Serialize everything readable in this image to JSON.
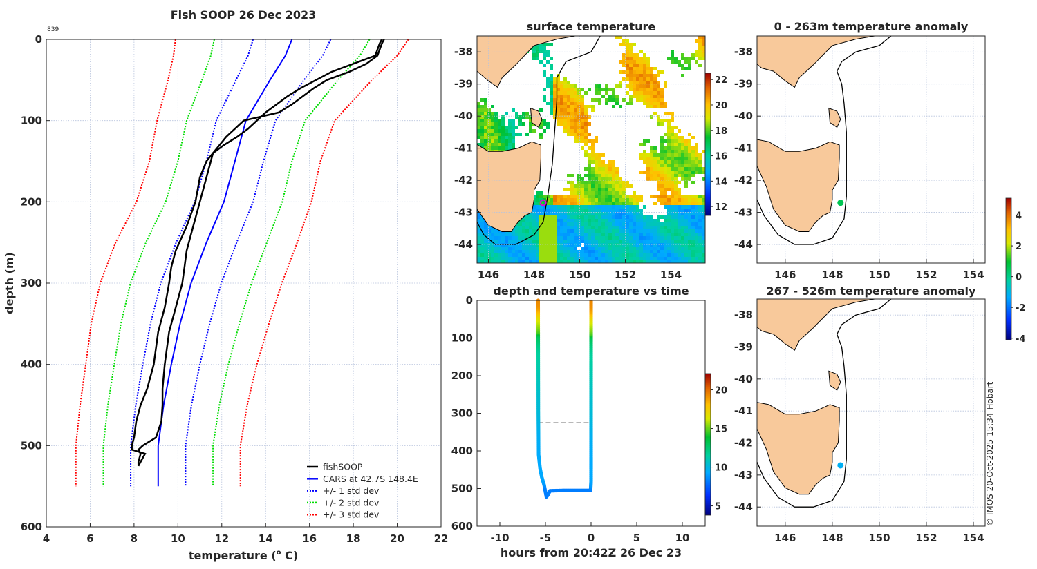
{
  "main": {
    "title": "Fish SOOP 26 Dec 2023",
    "profile_id": "839",
    "xlabel_pre": "temperature (",
    "xlabel_sup": "o",
    "xlabel_post": " C)",
    "ylabel": "depth (m)",
    "legend": [
      "fishSOOP",
      "CARS at 42.7S 148.4E",
      "+/- 1 std dev",
      "+/- 2 std dev",
      "+/- 3 std dev"
    ]
  },
  "sst_map": {
    "title": "surface temperature"
  },
  "time_plot": {
    "title": "depth and temperature vs time",
    "xlabel": "hours from 20:42Z 26 Dec 23"
  },
  "anom_map_1": {
    "title": "0 - 263m temperature anomaly"
  },
  "anom_map_2": {
    "title": "267 - 526m temperature anomaly"
  },
  "credit": "© IMOS 20-Oct-2025 15:34 Hobart",
  "colors": {
    "land": "#f8c99b",
    "fishsoop": "#000000",
    "cars": "#0000ff",
    "std1": "#0000ff",
    "std2": "#00dd00",
    "std3": "#ff0000",
    "marker": "#e000e0"
  },
  "chart_data": [
    {
      "type": "line",
      "id": "profile",
      "title": "Fish SOOP 26 Dec 2023",
      "xlabel": "temperature (o C)",
      "ylabel": "depth (m)",
      "xlim": [
        4,
        22
      ],
      "ylim": [
        600,
        0
      ],
      "xticks": [
        4,
        6,
        8,
        10,
        12,
        14,
        16,
        18,
        20,
        22
      ],
      "yticks": [
        0,
        100,
        200,
        300,
        400,
        500,
        600
      ],
      "grid": true,
      "legend_position": "bottom-right",
      "depth": [
        0,
        5,
        20,
        30,
        40,
        50,
        60,
        70,
        80,
        90,
        100,
        110,
        120,
        130,
        140,
        150,
        170,
        200,
        230,
        260,
        280,
        300,
        330,
        360,
        400,
        430,
        450,
        470,
        490,
        500,
        505,
        510,
        520,
        525
      ],
      "series": [
        {
          "name": "fishSOOP",
          "cast": "down",
          "temp": [
            19.3,
            19.2,
            19.0,
            18.0,
            17.0,
            16.3,
            15.6,
            15.0,
            14.5,
            14.0,
            13.6,
            13.2,
            12.7,
            12.1,
            11.6,
            11.3,
            11.0,
            10.8,
            10.4,
            9.9,
            9.7,
            9.6,
            9.4,
            9.1,
            8.9,
            8.6,
            8.3,
            8.1,
            8.0,
            7.9,
            7.9,
            8.5,
            8.3,
            8.2
          ]
        },
        {
          "name": "fishSOOP",
          "cast": "up",
          "temp": [
            19.4,
            19.3,
            19.1,
            18.6,
            17.8,
            16.8,
            16.2,
            15.7,
            15.2,
            14.6,
            13.0,
            12.6,
            12.2,
            11.9,
            11.6,
            11.5,
            11.3,
            11.0,
            10.7,
            10.4,
            10.3,
            10.2,
            9.9,
            9.6,
            9.4,
            9.3,
            9.3,
            9.25,
            9.0,
            8.4,
            8.2,
            8.3,
            8.2,
            8.2
          ]
        }
      ],
      "cars": {
        "name": "CARS at 42.7S 148.4E",
        "depth": [
          0,
          20,
          50,
          100,
          150,
          200,
          250,
          300,
          350,
          400,
          450,
          500,
          550
        ],
        "mean": [
          15.2,
          14.9,
          14.2,
          13.1,
          12.6,
          12.1,
          11.3,
          10.6,
          10.1,
          9.7,
          9.35,
          9.1,
          9.1
        ],
        "std": [
          1.77,
          1.7,
          1.55,
          1.35,
          1.3,
          1.33,
          1.38,
          1.38,
          1.35,
          1.3,
          1.27,
          1.25,
          1.25
        ]
      }
    },
    {
      "type": "heatmap",
      "id": "sst",
      "title": "surface temperature",
      "xlim": [
        145.5,
        155.5
      ],
      "ylim": [
        -44.58,
        -37.5
      ],
      "xticks": [
        146,
        148,
        150,
        152,
        154
      ],
      "yticks": [
        -38,
        -39,
        -40,
        -41,
        -42,
        -43,
        -44
      ],
      "colorbar": {
        "range": [
          11.3,
          22.5
        ],
        "ticks": [
          12,
          14,
          16,
          18,
          20,
          22
        ]
      },
      "marker": {
        "lat": -42.7,
        "lon": 148.4
      }
    },
    {
      "type": "scatter",
      "id": "depth_time",
      "title": "depth and temperature vs time",
      "xlabel": "hours from 20:42Z 26 Dec 23",
      "xlim": [
        -12.5,
        12.5
      ],
      "ylim": [
        600,
        0
      ],
      "xticks": [
        -10,
        -5,
        0,
        5,
        10
      ],
      "yticks": [
        0,
        100,
        200,
        300,
        400,
        500,
        600
      ],
      "hours": [
        -5.8,
        -5.78,
        -5.75,
        -5.6,
        -5.4,
        -5.15,
        -4.9,
        -4.75,
        -4.5,
        -3.0,
        -1.0,
        -0.05,
        0.0,
        0.0
      ],
      "depth": [
        0,
        300,
        410,
        445,
        470,
        490,
        522,
        518,
        506,
        505,
        505,
        505,
        480,
        0
      ],
      "dashed_depth": 325,
      "colorbar": {
        "range": [
          3.8,
          22.1
        ],
        "ticks": [
          5,
          10,
          15,
          20
        ]
      }
    },
    {
      "type": "scatter",
      "id": "anom1",
      "title": "0 - 263m temperature anomaly",
      "xlim": [
        144.8,
        154.5
      ],
      "ylim": [
        -44.58,
        -37.5
      ],
      "xticks": [
        146,
        148,
        150,
        152,
        154
      ],
      "yticks": [
        -38,
        -39,
        -40,
        -41,
        -42,
        -43,
        -44
      ],
      "point": {
        "lat": -42.7,
        "lon": 148.35,
        "anomaly": 0.6
      }
    },
    {
      "type": "scatter",
      "id": "anom2",
      "title": "267 - 526m temperature anomaly",
      "xlim": [
        144.8,
        154.5
      ],
      "ylim": [
        -44.6,
        -37.5
      ],
      "xticks": [
        146,
        148,
        150,
        152,
        154
      ],
      "yticks": [
        -38,
        -39,
        -40,
        -41,
        -42,
        -43,
        -44
      ],
      "point": {
        "lat": -42.7,
        "lon": 148.35,
        "anomaly": -1.2
      },
      "colorbar": {
        "range": [
          -4.1,
          5.1
        ],
        "ticks": [
          4,
          2,
          0,
          -2,
          -4
        ]
      }
    }
  ]
}
